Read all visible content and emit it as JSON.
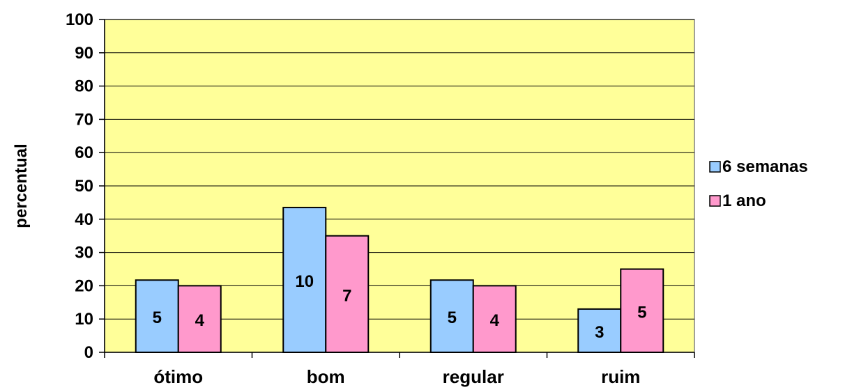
{
  "chart_data": {
    "type": "bar",
    "title": "",
    "xlabel": "",
    "ylabel": "percentual",
    "ylim": [
      0,
      100
    ],
    "yticks": [
      0,
      10,
      20,
      30,
      40,
      50,
      60,
      70,
      80,
      90,
      100
    ],
    "grid": true,
    "legend_position": "right",
    "plot_background": "#ffff99",
    "categories": [
      "ótimo",
      "bom",
      "regular",
      "ruim"
    ],
    "series": [
      {
        "name": "6 semanas",
        "color": "#99ccff",
        "values": [
          21.7,
          43.5,
          21.7,
          13.0
        ],
        "labels": [
          "5",
          "10",
          "5",
          "3"
        ]
      },
      {
        "name": "1 ano",
        "color": "#ff99cc",
        "values": [
          20,
          35,
          20,
          25
        ],
        "labels": [
          "4",
          "7",
          "4",
          "5"
        ]
      }
    ]
  }
}
